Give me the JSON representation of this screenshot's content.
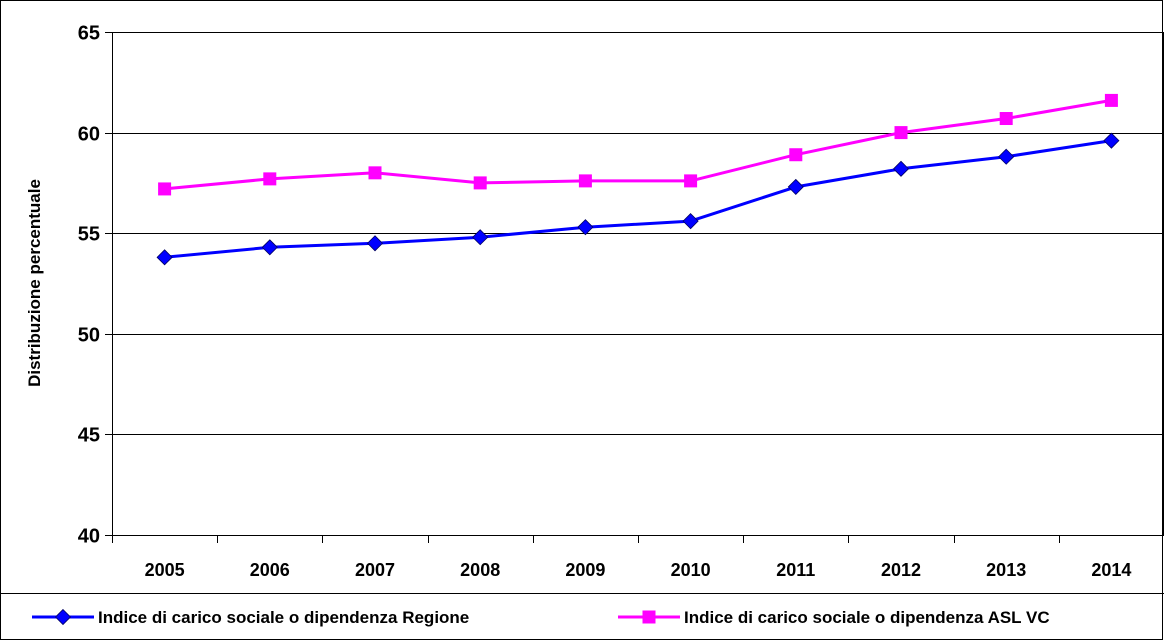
{
  "chart_data": {
    "type": "line",
    "categories": [
      "2005",
      "2006",
      "2007",
      "2008",
      "2009",
      "2010",
      "2011",
      "2012",
      "2013",
      "2014"
    ],
    "ylabel": "Distribuzione percentuale",
    "xlabel": "",
    "ylim": [
      40,
      65
    ],
    "yticks": [
      40,
      45,
      50,
      55,
      60,
      65
    ],
    "grid": "horizontal",
    "legend_position": "bottom",
    "series": [
      {
        "name": "Indice di carico sociale o dipendenza Regione",
        "color": "#0000FF",
        "marker": "diamond",
        "values": [
          53.8,
          54.3,
          54.5,
          54.8,
          55.3,
          55.6,
          57.3,
          58.2,
          58.8,
          59.6
        ]
      },
      {
        "name": "Indice di carico sociale o dipendenza ASL VC",
        "color": "#FF00FF",
        "marker": "square",
        "values": [
          57.2,
          57.7,
          58.0,
          57.5,
          57.6,
          57.6,
          58.9,
          60.0,
          60.7,
          61.6
        ]
      }
    ]
  }
}
